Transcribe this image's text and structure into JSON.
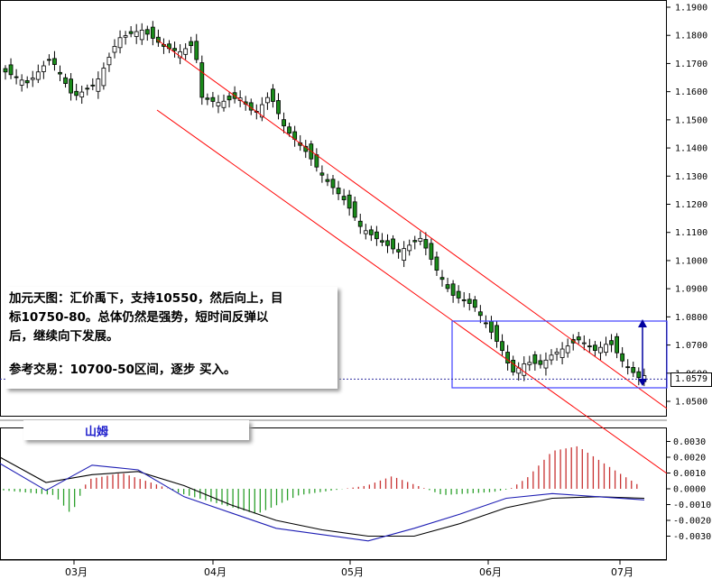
{
  "annotation": {
    "line1": "加元天图：汇价禹下，支持10550，然后向上，目",
    "line2": "标10750-80。总体仍然是强势，短时间反弹以",
    "line3": "后，继续向下发展。",
    "line4": "参考交易：10700-50区间，逐步  买入。"
  },
  "signature": "山姆",
  "current_price_label": "1.0579",
  "colors": {
    "up_candle": "#ffffff",
    "down_candle": "#1a8c1a",
    "channel": "#ff0000",
    "range_box": "#4040ff",
    "macd_pos": "#c83232",
    "macd_neg": "#2ca02c",
    "signal_line": "#000000",
    "macd_line": "#1e1eb4"
  },
  "chart_data": [
    {
      "type": "candlestick",
      "title": "",
      "x_tick_labels": [
        "03月",
        "04月",
        "05月",
        "06月",
        "07月"
      ],
      "y_tick_labels": [
        "1.1900",
        "1.1800",
        "1.1700",
        "1.1600",
        "1.1500",
        "1.1400",
        "1.1300",
        "1.1200",
        "1.1100",
        "1.1000",
        "1.0900",
        "1.0800",
        "1.0700",
        "1.0600",
        "1.0500"
      ],
      "ylim": [
        1.0445,
        1.191
      ],
      "grid": false,
      "annotations": [
        "descending channel",
        "range box 1.0542-1.0782",
        "current price 1.0579"
      ],
      "close_path": [
        [
          0,
          1.167
        ],
        [
          3,
          1.163
        ],
        [
          6,
          1.172
        ],
        [
          9,
          1.158
        ],
        [
          12,
          1.163
        ],
        [
          15,
          1.179
        ],
        [
          18,
          1.182
        ],
        [
          21,
          1.176
        ],
        [
          23,
          1.174
        ],
        [
          25,
          1.177
        ],
        [
          26,
          1.158
        ],
        [
          28,
          1.156
        ],
        [
          31,
          1.158
        ],
        [
          33,
          1.152
        ],
        [
          35,
          1.159
        ],
        [
          37,
          1.147
        ],
        [
          40,
          1.138
        ],
        [
          42,
          1.13
        ],
        [
          45,
          1.121
        ],
        [
          47,
          1.112
        ],
        [
          49,
          1.108
        ],
        [
          52,
          1.103
        ],
        [
          55,
          1.108
        ],
        [
          57,
          1.097
        ],
        [
          59,
          1.088
        ],
        [
          62,
          1.084
        ],
        [
          64,
          1.076
        ],
        [
          66,
          1.067
        ],
        [
          67,
          1.06
        ],
        [
          69,
          1.064
        ],
        [
          71,
          1.063
        ],
        [
          72,
          1.066
        ],
        [
          74,
          1.069
        ],
        [
          76,
          1.072
        ],
        [
          78,
          1.068
        ],
        [
          80,
          1.071
        ],
        [
          82,
          1.063
        ],
        [
          84,
          1.058
        ],
        [
          85,
          1.06
        ],
        [
          86,
          1.058
        ]
      ]
    },
    {
      "type": "bar",
      "title": "",
      "indicator": "MACD histogram with two lines",
      "y_tick_labels": [
        "0.0030",
        "0.0020",
        "0.0010",
        "0.0000",
        "-0.0010",
        "-0.0020",
        "-0.0030"
      ],
      "ylim": [
        -0.0036,
        0.0032
      ],
      "histogram_path": [
        [
          0,
          -0.0001
        ],
        [
          6,
          -0.0004
        ],
        [
          8,
          -0.0016
        ],
        [
          10,
          0.0006
        ],
        [
          14,
          0.001
        ],
        [
          18,
          0.0003
        ],
        [
          21,
          -0.0003
        ],
        [
          30,
          -0.0016
        ],
        [
          35,
          -0.0004
        ],
        [
          43,
          0.0002
        ],
        [
          46,
          0.0008
        ],
        [
          49,
          0.0002
        ],
        [
          52,
          -0.0004
        ],
        [
          58,
          -0.0002
        ],
        [
          60,
          0.0
        ],
        [
          62,
          0.0007
        ],
        [
          65,
          0.0024
        ],
        [
          68,
          0.0027
        ],
        [
          72,
          0.0013
        ],
        [
          75,
          0.0003
        ]
      ],
      "signal_path": [
        [
          0,
          0.002
        ],
        [
          5,
          0.0004
        ],
        [
          10,
          0.0009
        ],
        [
          15,
          0.0011
        ],
        [
          20,
          0.0002
        ],
        [
          25,
          -0.001
        ],
        [
          30,
          -0.002
        ],
        [
          35,
          -0.0026
        ],
        [
          40,
          -0.003
        ],
        [
          45,
          -0.003
        ],
        [
          50,
          -0.0022
        ],
        [
          55,
          -0.0012
        ],
        [
          60,
          -0.0006
        ],
        [
          65,
          -0.0005
        ],
        [
          70,
          -0.0006
        ]
      ],
      "macd_path": [
        [
          0,
          0.0016
        ],
        [
          5,
          -0.0001
        ],
        [
          10,
          0.0015
        ],
        [
          15,
          0.0012
        ],
        [
          20,
          -0.0005
        ],
        [
          25,
          -0.0015
        ],
        [
          30,
          -0.0025
        ],
        [
          35,
          -0.0029
        ],
        [
          40,
          -0.0033
        ],
        [
          45,
          -0.0025
        ],
        [
          50,
          -0.0016
        ],
        [
          55,
          -0.0006
        ],
        [
          60,
          -0.0003
        ],
        [
          65,
          -0.0005
        ],
        [
          70,
          -0.0007
        ]
      ]
    }
  ]
}
